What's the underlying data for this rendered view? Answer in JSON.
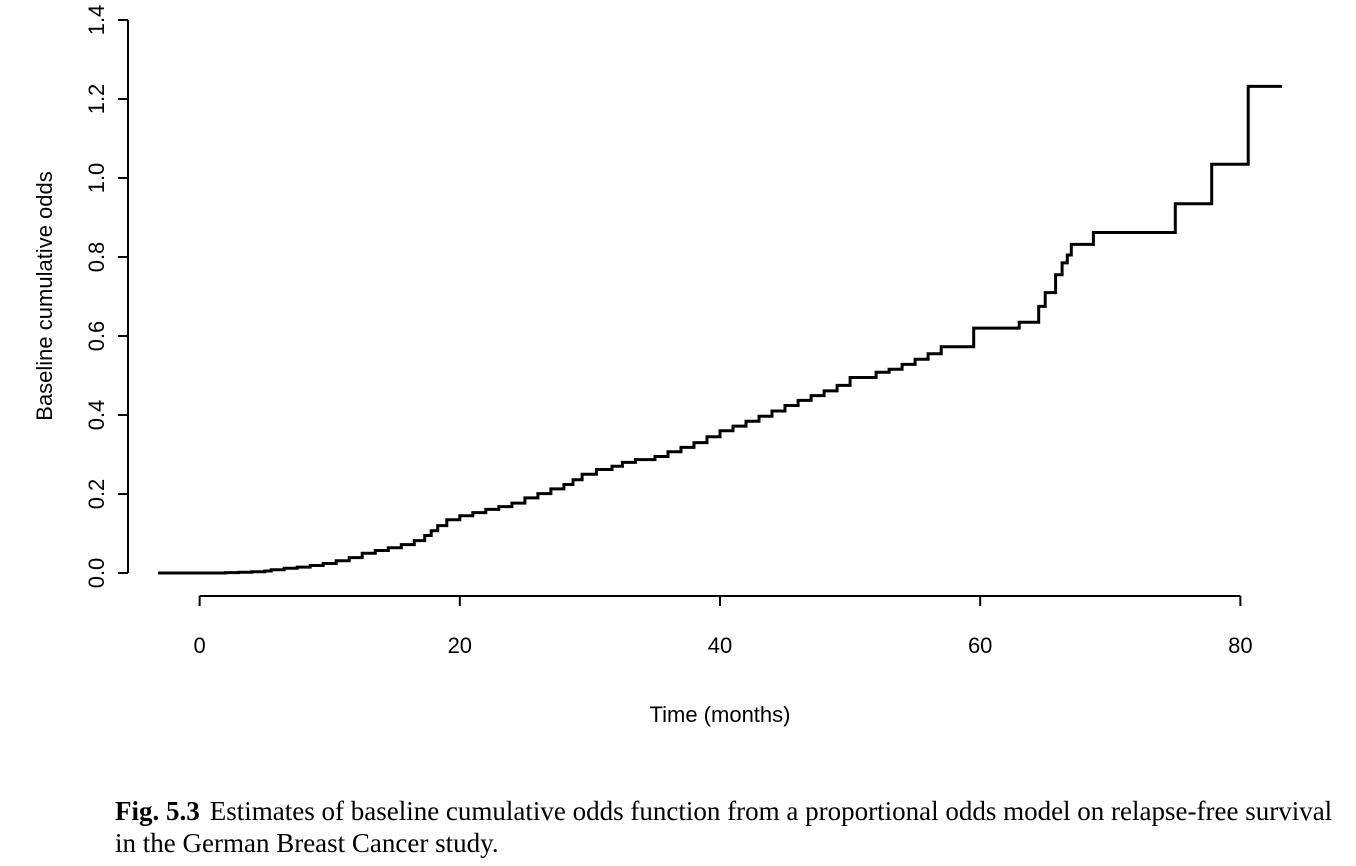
{
  "caption": {
    "label": "Fig. 5.3",
    "text": "Estimates of baseline cumulative odds function from a proportional odds model on relapse-free survival in the German Breast Cancer study."
  },
  "chart_data": {
    "type": "line",
    "style": "step",
    "title": "",
    "xlabel": "Time (months)",
    "ylabel": "Baseline cumulative odds",
    "xlim": [
      -3.2,
      83.2
    ],
    "ylim": [
      0,
      1.4
    ],
    "x_ticks": [
      "0",
      "20",
      "40",
      "60",
      "80"
    ],
    "y_ticks": [
      "0.0",
      "0.2",
      "0.4",
      "0.6",
      "0.8",
      "1.0",
      "1.2",
      "1.4"
    ],
    "grid": false,
    "line_color": "#000000",
    "series": [
      {
        "x": [
          -3.2,
          2,
          3,
          4,
          5,
          5.5,
          6.5,
          7.5,
          8.5,
          9.5,
          10.5,
          11.5,
          12.5,
          13.5,
          14.5,
          15.5,
          16.5,
          17.3,
          17.8,
          18.3,
          19,
          20,
          21,
          22,
          23,
          24,
          25,
          26,
          27,
          28,
          28.7,
          29.4,
          30.5,
          31.7,
          32.5,
          33.5,
          35,
          36,
          37,
          38,
          39,
          40,
          41,
          42,
          43,
          44,
          45,
          46,
          47,
          48,
          49,
          50,
          52,
          53,
          54,
          55,
          56,
          57,
          59.5,
          63,
          64.5,
          65,
          65.8,
          66.3,
          66.7,
          67,
          68.7,
          75,
          77.8,
          80.6,
          83.2
        ],
        "y": [
          0,
          0.001,
          0.002,
          0.003,
          0.005,
          0.008,
          0.012,
          0.015,
          0.019,
          0.024,
          0.031,
          0.039,
          0.05,
          0.057,
          0.064,
          0.072,
          0.082,
          0.095,
          0.107,
          0.12,
          0.135,
          0.145,
          0.153,
          0.161,
          0.168,
          0.177,
          0.19,
          0.201,
          0.213,
          0.224,
          0.236,
          0.25,
          0.262,
          0.27,
          0.28,
          0.287,
          0.295,
          0.307,
          0.318,
          0.33,
          0.345,
          0.36,
          0.372,
          0.384,
          0.397,
          0.41,
          0.424,
          0.437,
          0.449,
          0.461,
          0.475,
          0.495,
          0.508,
          0.516,
          0.528,
          0.541,
          0.555,
          0.573,
          0.62,
          0.635,
          0.675,
          0.71,
          0.755,
          0.785,
          0.805,
          0.832,
          0.862,
          0.935,
          1.035,
          1.232,
          1.232
        ]
      }
    ]
  }
}
